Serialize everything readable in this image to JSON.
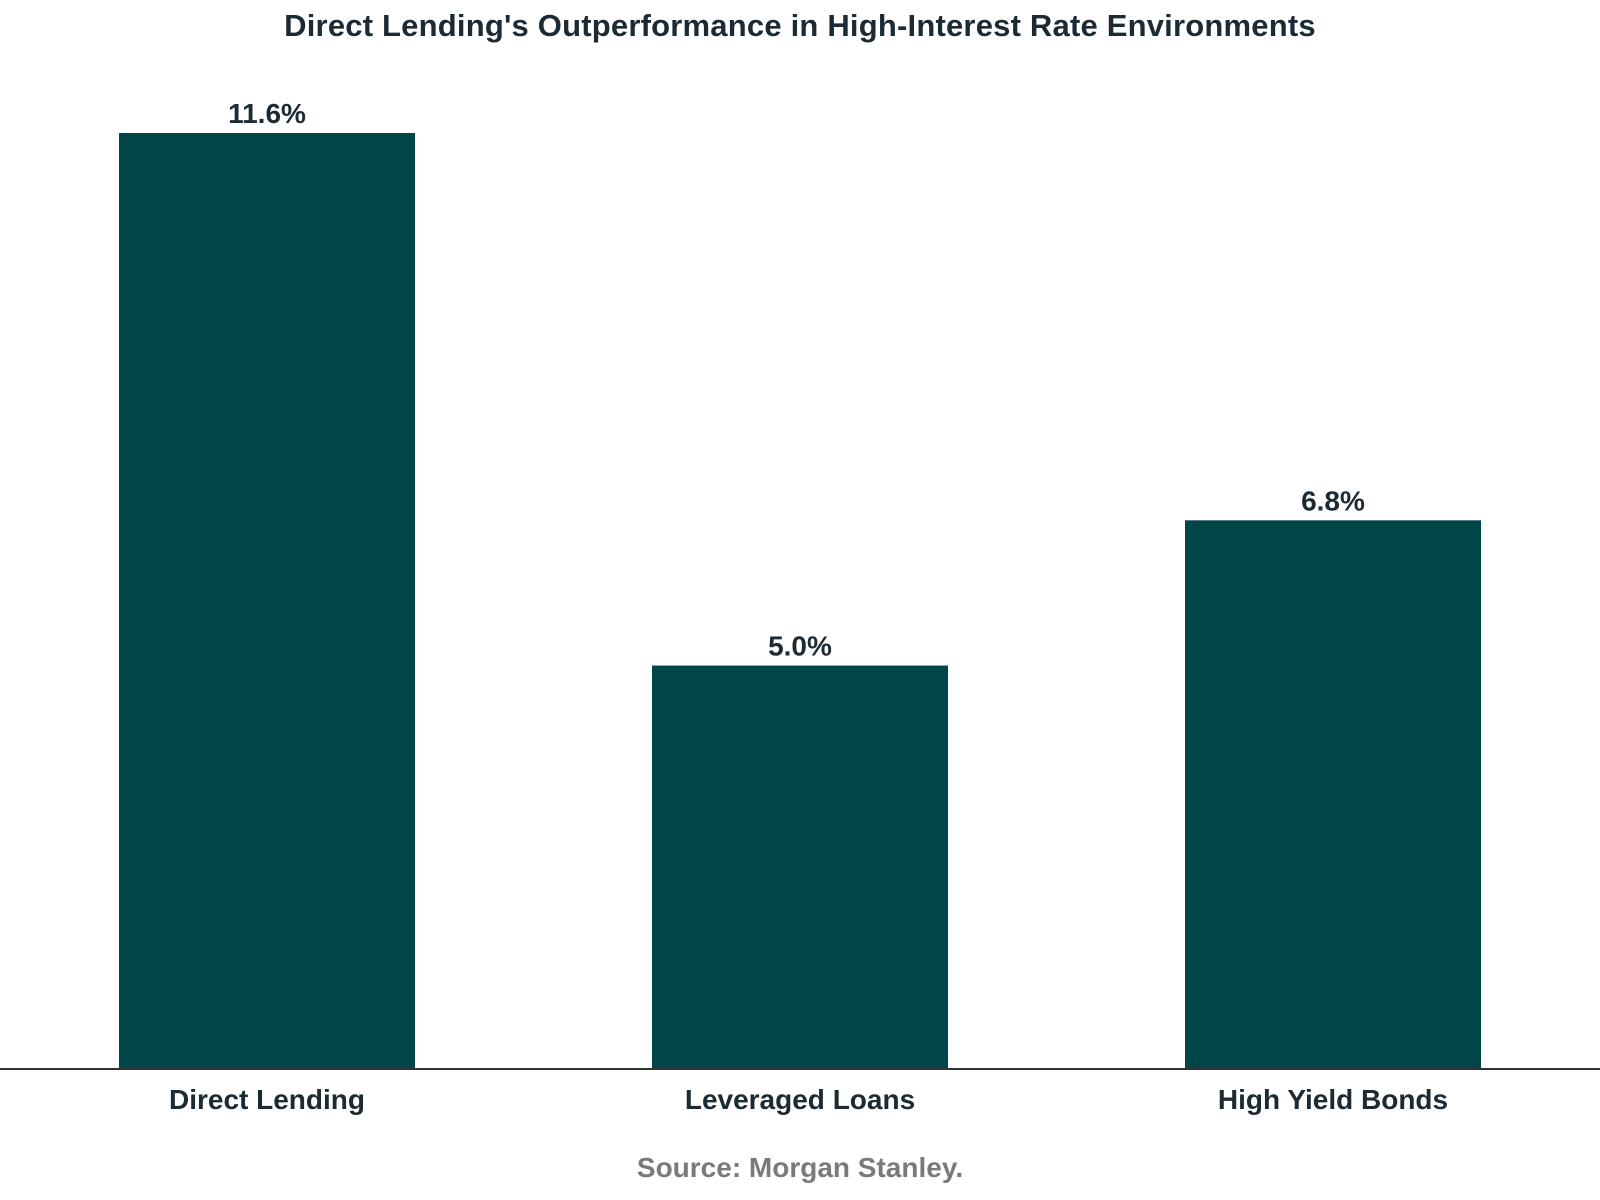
{
  "chart_data": {
    "type": "bar",
    "title": "Direct Lending's Outperformance in High-Interest Rate Environments",
    "categories": [
      "Direct Lending",
      "Leveraged Loans",
      "High Yield Bonds"
    ],
    "values": [
      11.6,
      5.0,
      6.8
    ],
    "value_labels": [
      "11.6%",
      "5.0%",
      "6.8%"
    ],
    "unit": "%",
    "xlabel": "",
    "ylabel": "",
    "ylim": [
      0,
      11.6
    ],
    "grid": false,
    "legend": "none",
    "bar_color": "#004547",
    "axis_color": "#333333"
  },
  "source": "Source: Morgan Stanley."
}
